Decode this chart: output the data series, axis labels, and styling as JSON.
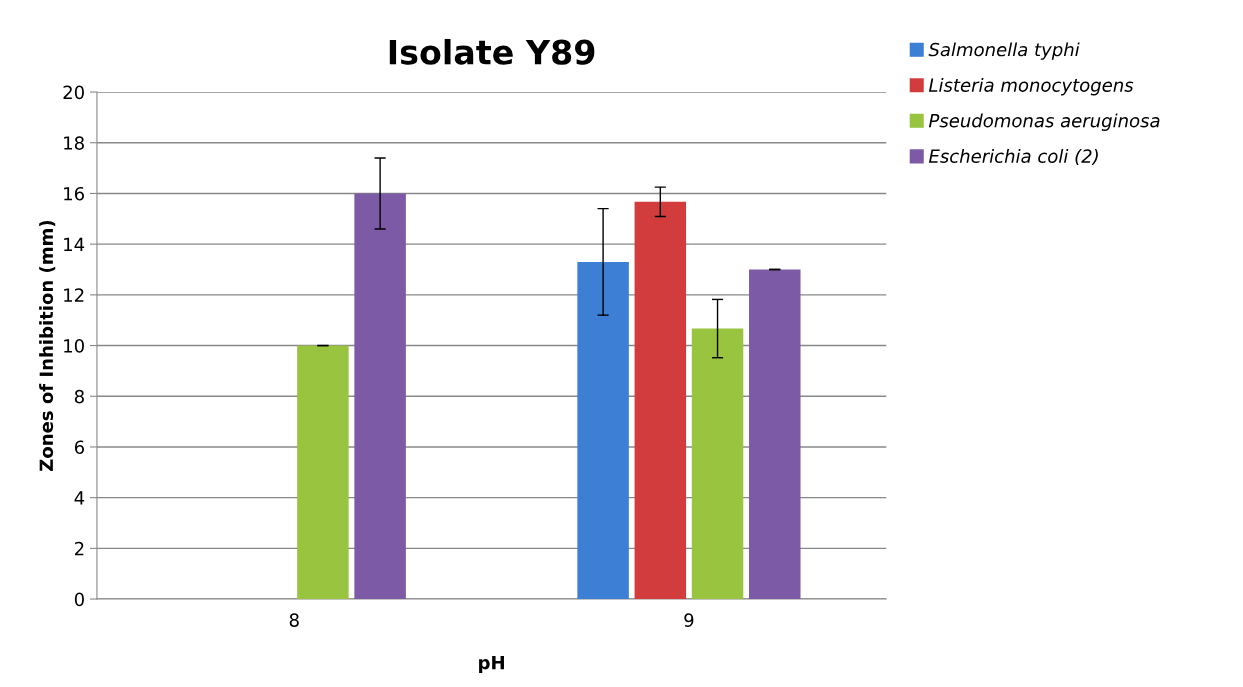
{
  "chart_data": {
    "type": "bar",
    "title": "Isolate Y89",
    "xlabel": "pH",
    "ylabel": "Zones of Inhibition (mm)",
    "categories": [
      "8",
      "9"
    ],
    "series": [
      {
        "name": "Salmonella typhi",
        "color": "#3c7fd4",
        "values": [
          0,
          13.3
        ],
        "errors": [
          null,
          2.1
        ]
      },
      {
        "name": "Listeria monocytogens",
        "color": "#d23c3c",
        "values": [
          0,
          15.67
        ],
        "errors": [
          null,
          0.58
        ]
      },
      {
        "name": "Pseudomonas aeruginosa",
        "color": "#99c440",
        "values": [
          10,
          10.67
        ],
        "errors": [
          0,
          1.15
        ]
      },
      {
        "name": "Escherichia coli (2)",
        "color": "#7d5aa6",
        "values": [
          16,
          13
        ],
        "errors": [
          1.4,
          0
        ]
      }
    ],
    "ylim": [
      0,
      20
    ],
    "yticks": [
      0,
      2,
      4,
      6,
      8,
      10,
      12,
      14,
      16,
      18,
      20
    ],
    "grid": "y",
    "legend": "top right"
  }
}
